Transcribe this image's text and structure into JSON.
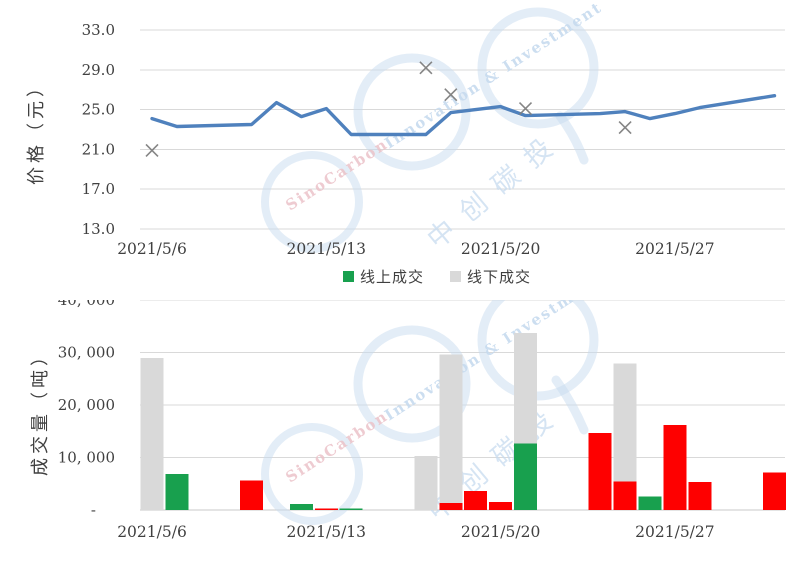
{
  "colors": {
    "line_blue": "#4f81bd",
    "marker_gray": "#7f7f7f",
    "bar_green": "#18a04e",
    "bar_gray": "#d9d9d9",
    "bar_red": "#fe0000",
    "grid": "#d9d9d9",
    "axis_text": "#404040",
    "watermark_blue": "#c7dbef",
    "watermark_pink": "#ecc3c9"
  },
  "watermark": {
    "text_en_1": "SinoCarbon",
    "text_en_2": "Innovation & Investment",
    "text_cn": "中创碳投"
  },
  "chart_data": [
    {
      "type": "line",
      "y_axis_title": "价格（元）",
      "ylim": [
        13,
        33
      ],
      "y_ticks": [
        13,
        17,
        21,
        25,
        29,
        33
      ],
      "y_tick_labels": [
        "13.0",
        "17.0",
        "21.0",
        "25.0",
        "29.0",
        "33.0"
      ],
      "x_tick_labels": [
        "2021/5/6",
        "2021/5/13",
        "2021/5/20",
        "2021/5/27"
      ],
      "x_tick_days": [
        0,
        7,
        14,
        21
      ],
      "grid": true,
      "line": {
        "color": "#4f81bd",
        "points": [
          {
            "date": "2021/5/6",
            "day": 0,
            "value": 24.1
          },
          {
            "date": "2021/5/7",
            "day": 1,
            "value": 23.3
          },
          {
            "date": "2021/5/10",
            "day": 4,
            "value": 23.5
          },
          {
            "date": "2021/5/11",
            "day": 5,
            "value": 25.7
          },
          {
            "date": "2021/5/12",
            "day": 6,
            "value": 24.3
          },
          {
            "date": "2021/5/13",
            "day": 7,
            "value": 25.1
          },
          {
            "date": "2021/5/14",
            "day": 8,
            "value": 22.5
          },
          {
            "date": "2021/5/17",
            "day": 11,
            "value": 22.5
          },
          {
            "date": "2021/5/18",
            "day": 12,
            "value": 24.7
          },
          {
            "date": "2021/5/19",
            "day": 13,
            "value": 25.0
          },
          {
            "date": "2021/5/20",
            "day": 14,
            "value": 25.3
          },
          {
            "date": "2021/5/21",
            "day": 15,
            "value": 24.4
          },
          {
            "date": "2021/5/24",
            "day": 18,
            "value": 24.6
          },
          {
            "date": "2021/5/25",
            "day": 19,
            "value": 24.8
          },
          {
            "date": "2021/5/26",
            "day": 20,
            "value": 24.1
          },
          {
            "date": "2021/5/27",
            "day": 21,
            "value": 24.6
          },
          {
            "date": "2021/5/28",
            "day": 22,
            "value": 25.2
          },
          {
            "date": "2021/5/31",
            "day": 25,
            "value": 26.4
          }
        ]
      },
      "markers": {
        "shape": "x",
        "color": "#7f7f7f",
        "points": [
          {
            "date": "2021/5/6",
            "day": 0,
            "value": 20.9
          },
          {
            "date": "2021/5/17",
            "day": 11,
            "value": 29.2
          },
          {
            "date": "2021/5/18",
            "day": 12,
            "value": 26.5
          },
          {
            "date": "2021/5/21",
            "day": 15,
            "value": 25.1
          },
          {
            "date": "2021/5/25",
            "day": 19,
            "value": 23.2
          }
        ]
      }
    },
    {
      "type": "bar",
      "y_axis_title": "成交量（吨）",
      "ylim": [
        0,
        40000
      ],
      "y_ticks": [
        0,
        10000,
        20000,
        30000,
        40000
      ],
      "y_tick_labels": [
        "-",
        "10, 000",
        "20, 000",
        "30, 000",
        "40, 000"
      ],
      "x_tick_labels": [
        "2021/5/6",
        "2021/5/13",
        "2021/5/20",
        "2021/5/27"
      ],
      "x_tick_days": [
        0,
        7,
        14,
        21
      ],
      "grid": true,
      "legend": [
        {
          "label": "线上成交",
          "color": "#18a04e"
        },
        {
          "label": "线下成交",
          "color": "#d9d9d9"
        }
      ],
      "bars": [
        {
          "date": "2021/5/6",
          "day": 0,
          "color": "gray",
          "value": 29000
        },
        {
          "date": "2021/5/7",
          "day": 1,
          "color": "green",
          "value": 6900
        },
        {
          "date": "2021/5/10",
          "day": 4,
          "color": "red",
          "value": 5600
        },
        {
          "date": "2021/5/12",
          "day": 6,
          "color": "green",
          "value": 1100
        },
        {
          "date": "2021/5/13",
          "day": 7,
          "color": "red",
          "value": 300
        },
        {
          "date": "2021/5/14",
          "day": 8,
          "color": "green",
          "value": 250
        },
        {
          "date": "2021/5/17",
          "day": 11,
          "color": "gray",
          "value": 10300
        },
        {
          "date": "2021/5/18",
          "day": 12,
          "color": "gray",
          "value": 29600
        },
        {
          "date": "2021/5/18",
          "day": 12,
          "color": "red",
          "value": 1300
        },
        {
          "date": "2021/5/19",
          "day": 13,
          "color": "red",
          "value": 3600
        },
        {
          "date": "2021/5/20",
          "day": 14,
          "color": "red",
          "value": 1500
        },
        {
          "date": "2021/5/21",
          "day": 15,
          "color": "gray",
          "value": 33700
        },
        {
          "date": "2021/5/21",
          "day": 15,
          "color": "green",
          "value": 12700
        },
        {
          "date": "2021/5/24",
          "day": 18,
          "color": "red",
          "value": 14700
        },
        {
          "date": "2021/5/25",
          "day": 19,
          "color": "gray",
          "value": 27900
        },
        {
          "date": "2021/5/25",
          "day": 19,
          "color": "red",
          "value": 5400
        },
        {
          "date": "2021/5/26",
          "day": 20,
          "color": "green",
          "value": 2600
        },
        {
          "date": "2021/5/27",
          "day": 21,
          "color": "red",
          "value": 16200
        },
        {
          "date": "2021/5/28",
          "day": 22,
          "color": "red",
          "value": 5300
        },
        {
          "date": "2021/5/31",
          "day": 25,
          "color": "red",
          "value": 7100
        }
      ]
    }
  ]
}
